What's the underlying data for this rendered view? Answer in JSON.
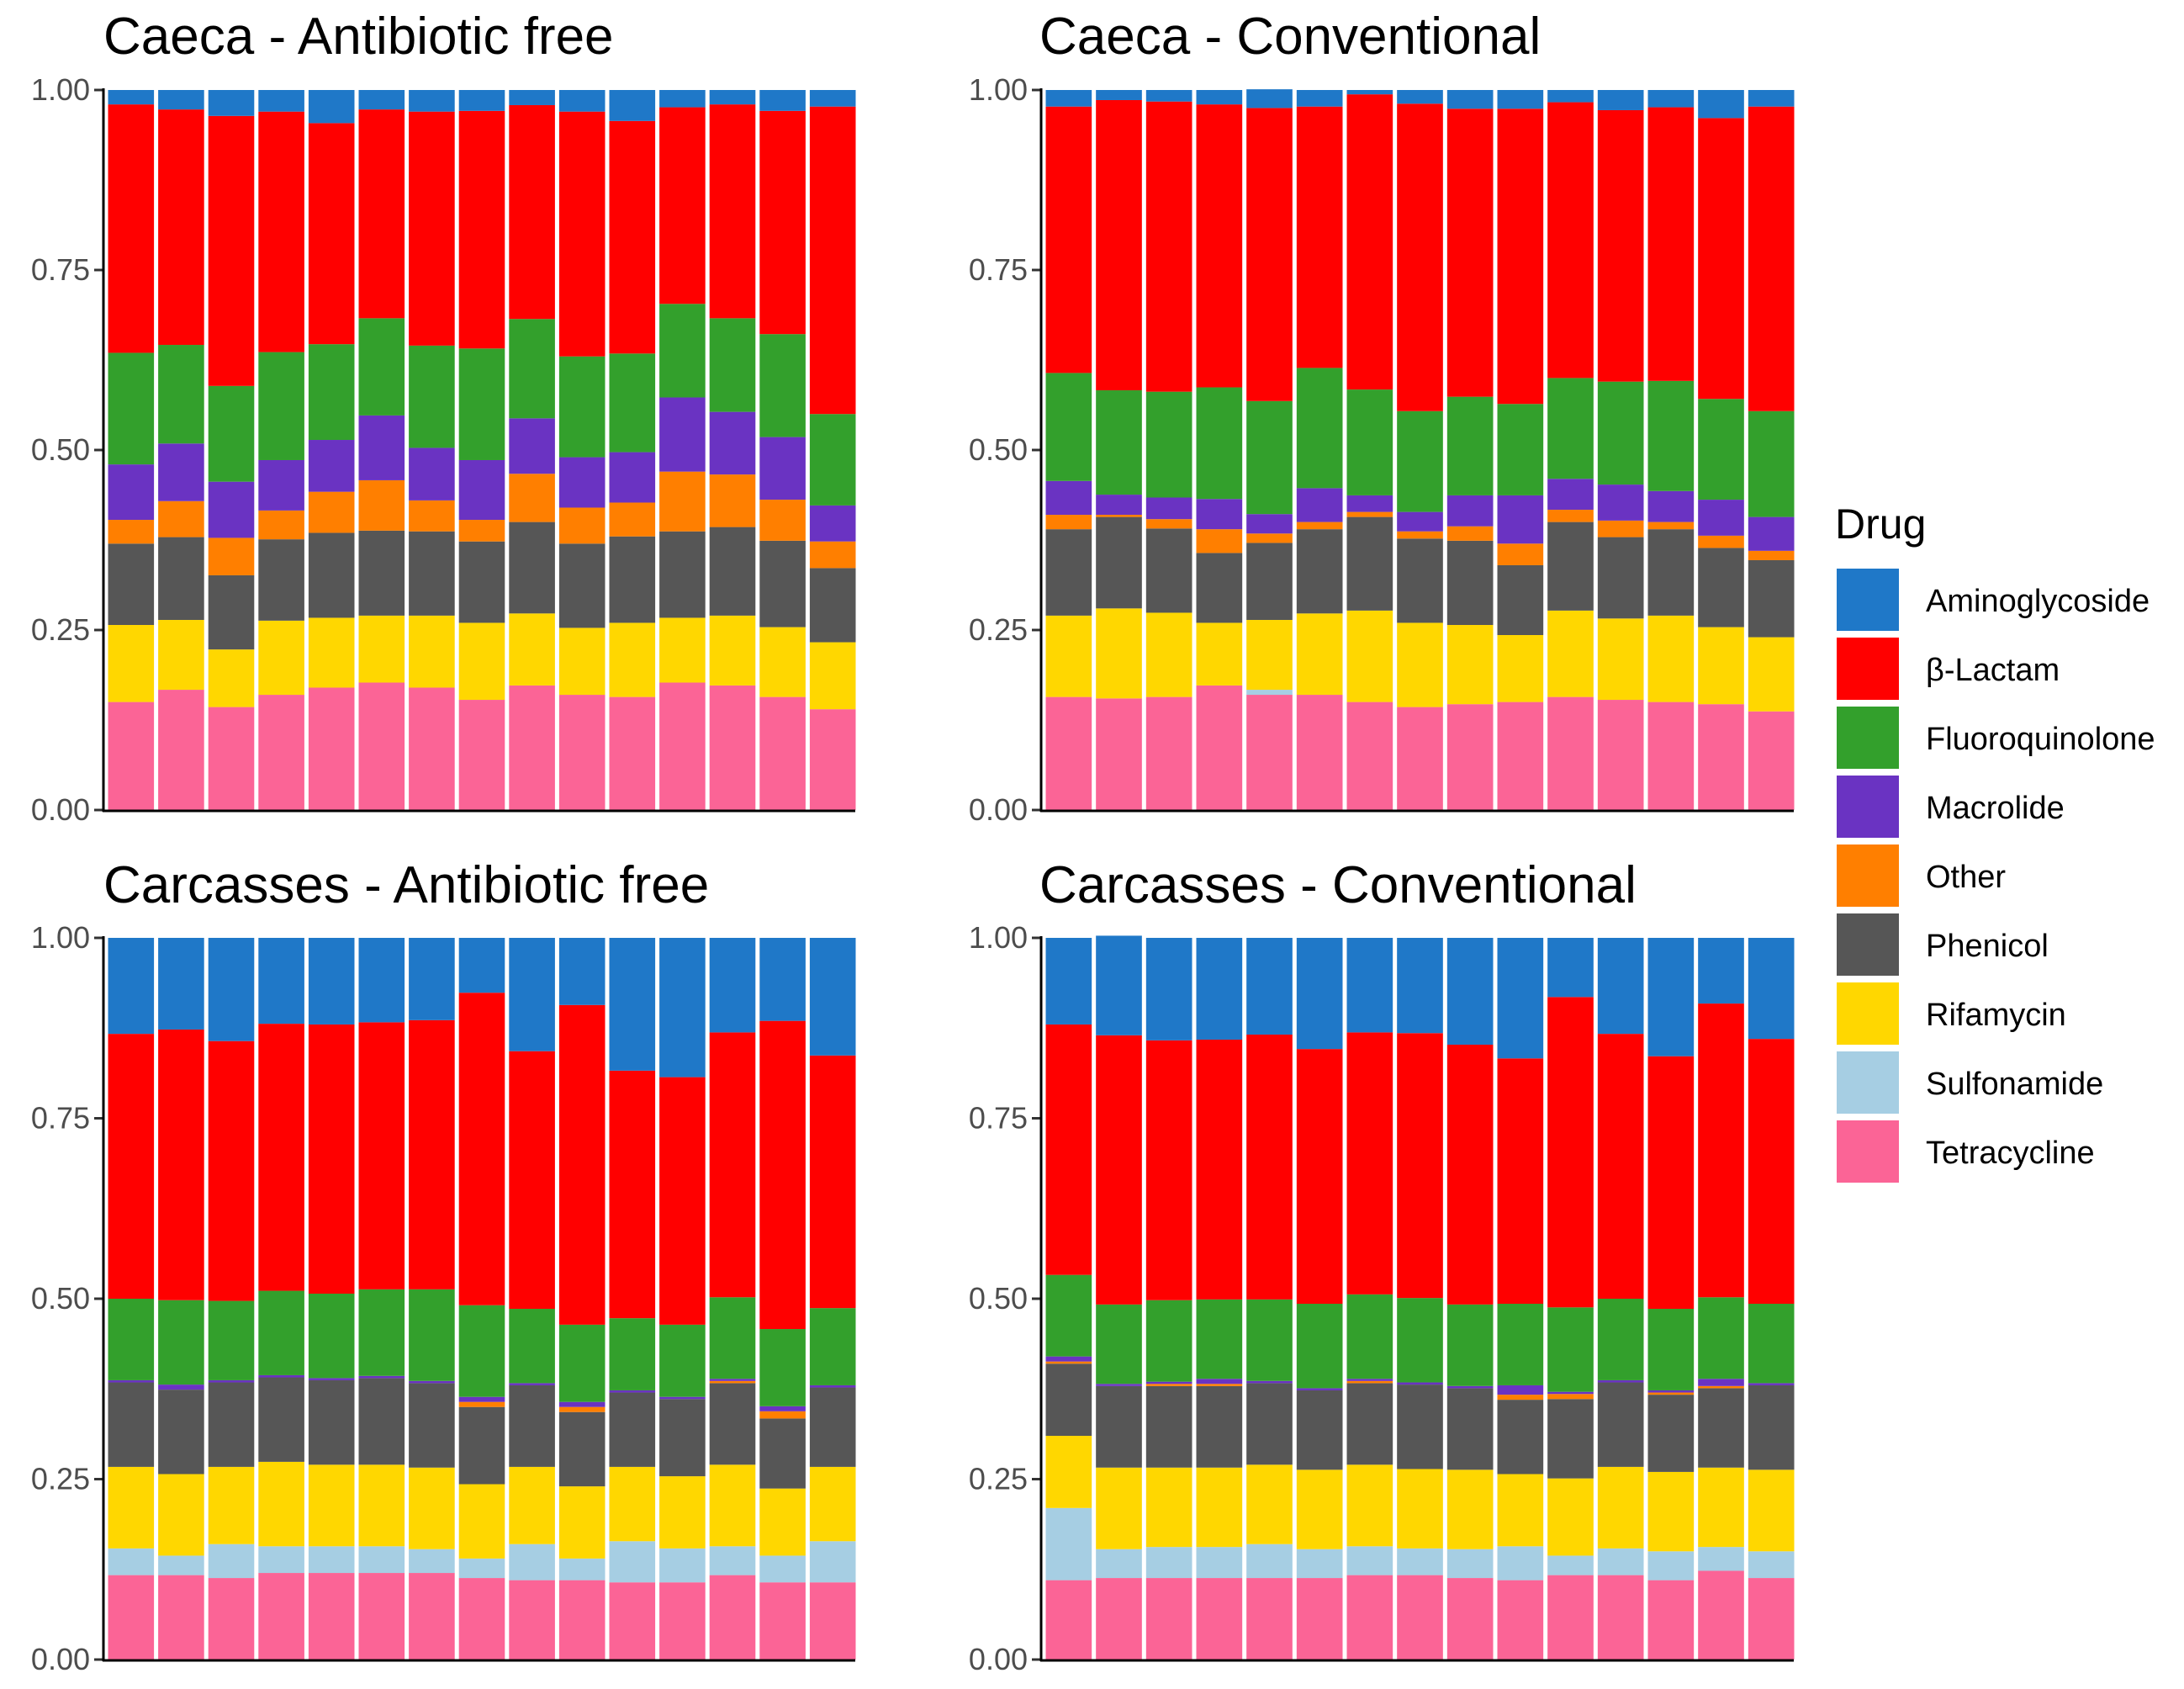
{
  "legend": {
    "title": "Drug",
    "items": [
      {
        "key": "aminoglycoside",
        "label": "Aminoglycoside",
        "color": "#1F78C8"
      },
      {
        "key": "beta_lactam",
        "label": "β-Lactam",
        "color": "#FF0000"
      },
      {
        "key": "fluoroquinolone",
        "label": "Fluoroquinolone",
        "color": "#33A02C"
      },
      {
        "key": "macrolide",
        "label": "Macrolide",
        "color": "#6A33C2"
      },
      {
        "key": "other",
        "label": "Other",
        "color": "#FF7F00"
      },
      {
        "key": "phenicol",
        "label": "Phenicol",
        "color": "#565656"
      },
      {
        "key": "rifamycin",
        "label": "Rifamycin",
        "color": "#FFD700"
      },
      {
        "key": "sulfonamide",
        "label": "Sulfonamide",
        "color": "#A6CEE3"
      },
      {
        "key": "tetracycline",
        "label": "Tetracycline",
        "color": "#FB6496"
      }
    ]
  },
  "chart_data": [
    {
      "type": "stacked-bar",
      "title": "Caeca - Antibiotic free",
      "ylim": [
        0,
        1
      ],
      "yticks": [
        "0.00",
        "0.25",
        "0.50",
        "0.75",
        "1.00"
      ],
      "stack_order": [
        "tetracycline",
        "sulfonamide",
        "rifamycin",
        "phenicol",
        "other",
        "macrolide",
        "fluoroquinolone",
        "beta_lactam",
        "aminoglycoside"
      ],
      "bars": [
        [
          0.15,
          0,
          0.107,
          0.113,
          0.033,
          0.077,
          0.155,
          0.345,
          0.02
        ],
        [
          0.167,
          0,
          0.097,
          0.115,
          0.05,
          0.08,
          0.137,
          0.327,
          0.027
        ],
        [
          0.143,
          0,
          0.08,
          0.103,
          0.052,
          0.078,
          0.133,
          0.375,
          0.036
        ],
        [
          0.16,
          0,
          0.103,
          0.113,
          0.04,
          0.07,
          0.15,
          0.334,
          0.03
        ],
        [
          0.17,
          0,
          0.097,
          0.118,
          0.057,
          0.072,
          0.133,
          0.307,
          0.046
        ],
        [
          0.177,
          0,
          0.093,
          0.118,
          0.07,
          0.09,
          0.135,
          0.29,
          0.027
        ],
        [
          0.17,
          0,
          0.1,
          0.117,
          0.043,
          0.073,
          0.142,
          0.325,
          0.03
        ],
        [
          0.153,
          0,
          0.107,
          0.113,
          0.03,
          0.083,
          0.155,
          0.33,
          0.029
        ],
        [
          0.173,
          0,
          0.1,
          0.127,
          0.067,
          0.077,
          0.138,
          0.297,
          0.021
        ],
        [
          0.16,
          0,
          0.093,
          0.117,
          0.05,
          0.07,
          0.14,
          0.34,
          0.03
        ],
        [
          0.157,
          0,
          0.103,
          0.12,
          0.047,
          0.07,
          0.137,
          0.323,
          0.043
        ],
        [
          0.177,
          0,
          0.09,
          0.12,
          0.083,
          0.103,
          0.13,
          0.273,
          0.024
        ],
        [
          0.173,
          0,
          0.097,
          0.123,
          0.073,
          0.087,
          0.13,
          0.297,
          0.02
        ],
        [
          0.157,
          0,
          0.097,
          0.12,
          0.057,
          0.087,
          0.143,
          0.31,
          0.029
        ],
        [
          0.14,
          0,
          0.093,
          0.103,
          0.037,
          0.05,
          0.127,
          0.427,
          0.023
        ]
      ]
    },
    {
      "type": "stacked-bar",
      "title": "Caeca - Conventional",
      "ylim": [
        0,
        1
      ],
      "yticks": [
        "0.00",
        "0.25",
        "0.50",
        "0.75",
        "1.00"
      ],
      "stack_order": [
        "tetracycline",
        "sulfonamide",
        "rifamycin",
        "phenicol",
        "other",
        "macrolide",
        "fluoroquinolone",
        "beta_lactam",
        "aminoglycoside"
      ],
      "bars": [
        [
          0.157,
          0,
          0.113,
          0.12,
          0.02,
          0.047,
          0.15,
          0.37,
          0.023
        ],
        [
          0.155,
          0,
          0.125,
          0.127,
          0.003,
          0.028,
          0.145,
          0.403,
          0.014
        ],
        [
          0.157,
          0,
          0.117,
          0.117,
          0.013,
          0.03,
          0.147,
          0.403,
          0.016
        ],
        [
          0.173,
          0,
          0.087,
          0.097,
          0.033,
          0.042,
          0.155,
          0.393,
          0.02
        ],
        [
          0.16,
          0.007,
          0.097,
          0.107,
          0.013,
          0.027,
          0.157,
          0.407,
          0.026
        ],
        [
          0.16,
          0,
          0.113,
          0.117,
          0.01,
          0.047,
          0.167,
          0.363,
          0.023
        ],
        [
          0.15,
          0,
          0.127,
          0.13,
          0.007,
          0.023,
          0.147,
          0.41,
          0.006
        ],
        [
          0.143,
          0,
          0.117,
          0.117,
          0.01,
          0.027,
          0.14,
          0.427,
          0.019
        ],
        [
          0.147,
          0,
          0.11,
          0.117,
          0.02,
          0.043,
          0.137,
          0.4,
          0.026
        ],
        [
          0.15,
          0,
          0.093,
          0.097,
          0.03,
          0.067,
          0.127,
          0.41,
          0.026
        ],
        [
          0.157,
          0,
          0.12,
          0.123,
          0.017,
          0.043,
          0.14,
          0.383,
          0.017
        ],
        [
          0.153,
          0,
          0.113,
          0.113,
          0.023,
          0.05,
          0.143,
          0.377,
          0.028
        ],
        [
          0.15,
          0,
          0.12,
          0.12,
          0.01,
          0.043,
          0.153,
          0.38,
          0.024
        ],
        [
          0.147,
          0,
          0.107,
          0.11,
          0.017,
          0.05,
          0.14,
          0.39,
          0.039
        ],
        [
          0.137,
          0,
          0.103,
          0.107,
          0.013,
          0.047,
          0.147,
          0.423,
          0.023
        ]
      ]
    },
    {
      "type": "stacked-bar",
      "title": "Carcasses - Antibiotic free",
      "ylim": [
        0,
        1
      ],
      "yticks": [
        "0.00",
        "0.25",
        "0.50",
        "0.75",
        "1.00"
      ],
      "stack_order": [
        "tetracycline",
        "sulfonamide",
        "rifamycin",
        "phenicol",
        "other",
        "macrolide",
        "fluoroquinolone",
        "beta_lactam",
        "aminoglycoside"
      ],
      "bars": [
        [
          0.117,
          0.037,
          0.113,
          0.117,
          0,
          0.003,
          0.113,
          0.367,
          0.133
        ],
        [
          0.117,
          0.027,
          0.113,
          0.117,
          0,
          0.007,
          0.117,
          0.375,
          0.127
        ],
        [
          0.113,
          0.047,
          0.107,
          0.117,
          0,
          0.003,
          0.11,
          0.36,
          0.143
        ],
        [
          0.12,
          0.037,
          0.117,
          0.117,
          0,
          0.003,
          0.117,
          0.37,
          0.119
        ],
        [
          0.12,
          0.037,
          0.113,
          0.117,
          0,
          0.003,
          0.117,
          0.373,
          0.12
        ],
        [
          0.12,
          0.037,
          0.113,
          0.12,
          0,
          0.003,
          0.12,
          0.37,
          0.117
        ],
        [
          0.12,
          0.033,
          0.113,
          0.117,
          0,
          0.003,
          0.127,
          0.373,
          0.114
        ],
        [
          0.113,
          0.027,
          0.103,
          0.107,
          0.007,
          0.007,
          0.127,
          0.433,
          0.076
        ],
        [
          0.11,
          0.05,
          0.107,
          0.113,
          0,
          0.003,
          0.103,
          0.357,
          0.157
        ],
        [
          0.11,
          0.03,
          0.1,
          0.103,
          0.007,
          0.007,
          0.107,
          0.443,
          0.093
        ],
        [
          0.107,
          0.057,
          0.103,
          0.103,
          0,
          0.003,
          0.1,
          0.343,
          0.184
        ],
        [
          0.107,
          0.047,
          0.1,
          0.107,
          0,
          0.003,
          0.1,
          0.343,
          0.193
        ],
        [
          0.117,
          0.04,
          0.113,
          0.113,
          0.003,
          0.003,
          0.113,
          0.367,
          0.131
        ],
        [
          0.107,
          0.037,
          0.093,
          0.097,
          0.01,
          0.007,
          0.107,
          0.427,
          0.115
        ],
        [
          0.107,
          0.057,
          0.103,
          0.11,
          0,
          0.003,
          0.107,
          0.35,
          0.163
        ]
      ]
    },
    {
      "type": "stacked-bar",
      "title": "Carcasses - Conventional",
      "ylim": [
        0,
        1
      ],
      "yticks": [
        "0.00",
        "0.25",
        "0.50",
        "0.75",
        "1.00"
      ],
      "stack_order": [
        "tetracycline",
        "sulfonamide",
        "rifamycin",
        "phenicol",
        "other",
        "macrolide",
        "fluoroquinolone",
        "beta_lactam",
        "aminoglycoside"
      ],
      "bars": [
        [
          0.11,
          0.1,
          0.1,
          0.1,
          0.003,
          0.007,
          0.113,
          0.347,
          0.12
        ],
        [
          0.113,
          0.04,
          0.113,
          0.113,
          0,
          0.003,
          0.11,
          0.373,
          0.138
        ],
        [
          0.113,
          0.043,
          0.11,
          0.113,
          0.003,
          0.003,
          0.113,
          0.36,
          0.142
        ],
        [
          0.113,
          0.043,
          0.11,
          0.113,
          0.003,
          0.007,
          0.11,
          0.36,
          0.141
        ],
        [
          0.113,
          0.047,
          0.11,
          0.113,
          0,
          0.003,
          0.113,
          0.367,
          0.134
        ],
        [
          0.113,
          0.04,
          0.11,
          0.11,
          0,
          0.003,
          0.117,
          0.353,
          0.154
        ],
        [
          0.117,
          0.04,
          0.113,
          0.113,
          0.003,
          0.003,
          0.117,
          0.363,
          0.131
        ],
        [
          0.117,
          0.037,
          0.11,
          0.117,
          0,
          0.003,
          0.117,
          0.367,
          0.132
        ],
        [
          0.113,
          0.04,
          0.11,
          0.113,
          0,
          0.003,
          0.113,
          0.36,
          0.148
        ],
        [
          0.11,
          0.047,
          0.1,
          0.103,
          0.007,
          0.013,
          0.113,
          0.34,
          0.167
        ],
        [
          0.117,
          0.027,
          0.107,
          0.11,
          0.007,
          0.003,
          0.117,
          0.43,
          0.082
        ],
        [
          0.117,
          0.037,
          0.113,
          0.117,
          0,
          0.003,
          0.113,
          0.367,
          0.133
        ],
        [
          0.11,
          0.04,
          0.11,
          0.107,
          0.003,
          0.003,
          0.113,
          0.35,
          0.164
        ],
        [
          0.123,
          0.033,
          0.11,
          0.11,
          0.003,
          0.01,
          0.113,
          0.407,
          0.091
        ],
        [
          0.113,
          0.037,
          0.113,
          0.117,
          0,
          0.003,
          0.11,
          0.367,
          0.14
        ]
      ]
    }
  ]
}
